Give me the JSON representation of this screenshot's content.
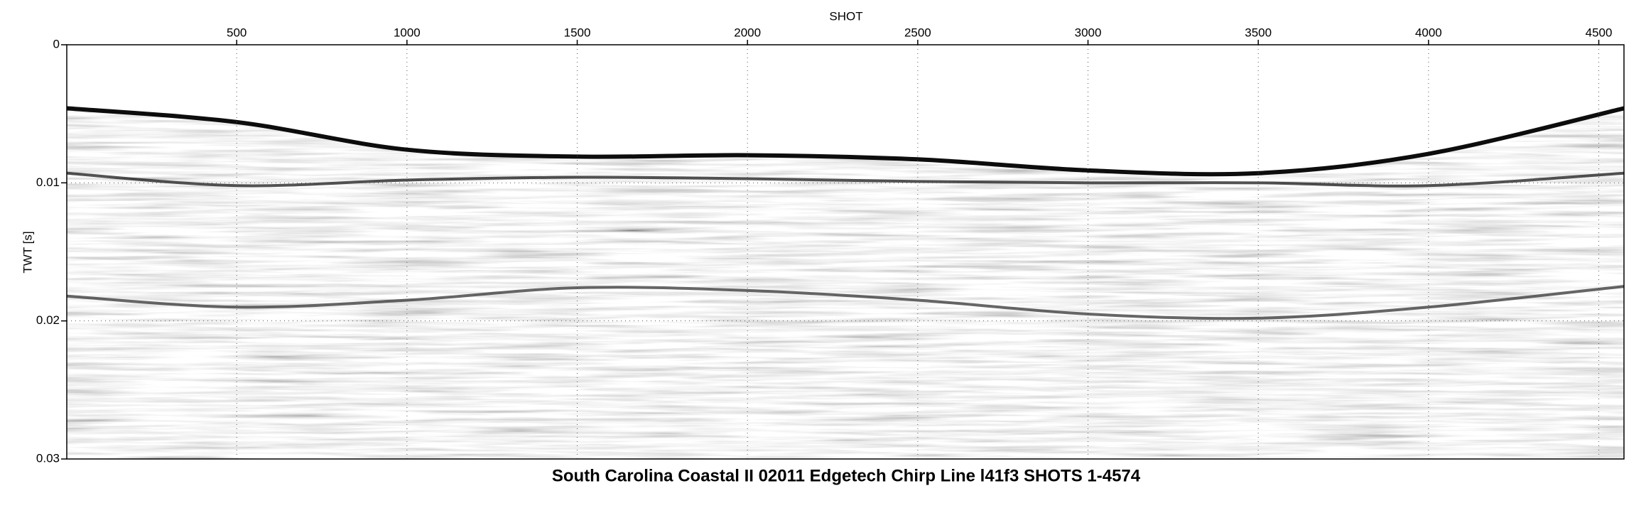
{
  "chart_data": {
    "type": "seismic",
    "title": "South Carolina Coastal II 02011 Edgetech Chirp Line l41f3 SHOTS 1-4574",
    "x_label": "SHOT",
    "y_label": "TWT [s]",
    "xlim": [
      1,
      4574
    ],
    "ylim": [
      0,
      0.03
    ],
    "xticks": [
      500,
      1000,
      1500,
      2000,
      2500,
      3000,
      3500,
      4000,
      4500
    ],
    "yticks": [
      0,
      0.01,
      0.02,
      0.03
    ],
    "y_inverted": true,
    "x_axis_position": "top",
    "grid": true,
    "x": [
      1,
      500,
      1000,
      1500,
      2000,
      2500,
      3000,
      3500,
      4000,
      4574
    ],
    "series": [
      {
        "color": "#000000",
        "values": [
          0.0046,
          0.0056,
          0.0076,
          0.0081,
          0.008,
          0.0083,
          0.0091,
          0.0093,
          0.0079,
          0.0046
        ]
      },
      {
        "color": "#1a1a1a",
        "values": [
          0.0093,
          0.0102,
          0.0098,
          0.0096,
          0.0097,
          0.0099,
          0.01,
          0.01,
          0.0102,
          0.0093
        ]
      },
      {
        "color": "#333333",
        "values": [
          0.0182,
          0.019,
          0.0185,
          0.0176,
          0.0178,
          0.0185,
          0.0195,
          0.0198,
          0.019,
          0.0175
        ]
      }
    ]
  }
}
